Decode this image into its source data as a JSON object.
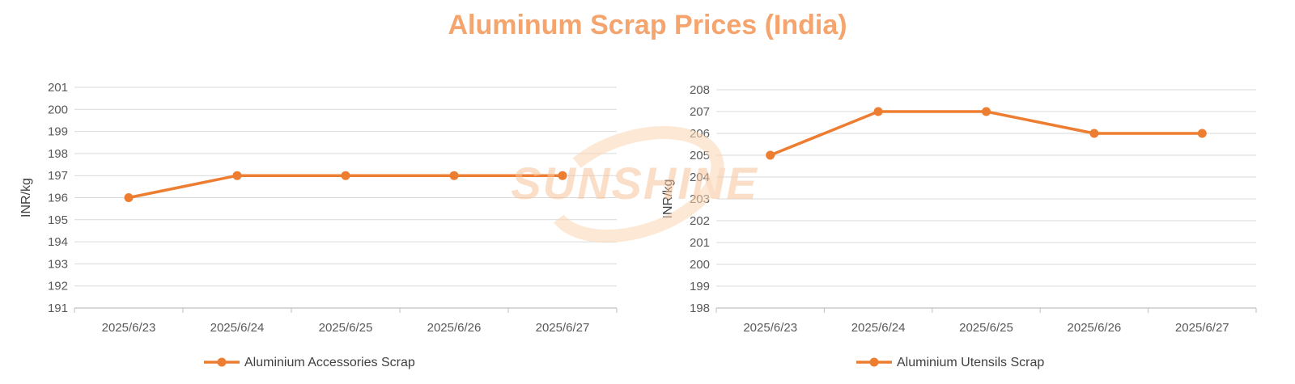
{
  "title": "Aluminum Scrap Prices (India)",
  "watermark": "SUNSHINE",
  "colors": {
    "title": "#f4a46c",
    "line": "#ed7d31",
    "grid": "#d9d9d9",
    "axis": "#bfbfbf",
    "text": "#595959",
    "watermark": "#f8c49a"
  },
  "chart_data": [
    {
      "type": "line",
      "categories": [
        "2025/6/23",
        "2025/6/24",
        "2025/6/25",
        "2025/6/26",
        "2025/6/27"
      ],
      "series": [
        {
          "name": "Aluminium Accessories Scrap",
          "values": [
            196,
            197,
            197,
            197,
            197
          ]
        }
      ],
      "ylabel": "INR/kg",
      "ylim": [
        191,
        201
      ],
      "yticks": [
        "191",
        "192",
        "193",
        "194",
        "195",
        "196",
        "197",
        "198",
        "199",
        "200",
        "201"
      ],
      "grid": true,
      "legend": "bottom"
    },
    {
      "type": "line",
      "categories": [
        "2025/6/23",
        "2025/6/24",
        "2025/6/25",
        "2025/6/26",
        "2025/6/27"
      ],
      "series": [
        {
          "name": "Aluminium Utensils Scrap",
          "values": [
            205,
            207,
            207,
            206,
            206
          ]
        }
      ],
      "ylabel": "INR/kg",
      "ylim": [
        198,
        208
      ],
      "yticks": [
        "198",
        "199",
        "200",
        "201",
        "202",
        "203",
        "204",
        "205",
        "206",
        "207",
        "208"
      ],
      "grid": true,
      "legend": "bottom"
    }
  ]
}
